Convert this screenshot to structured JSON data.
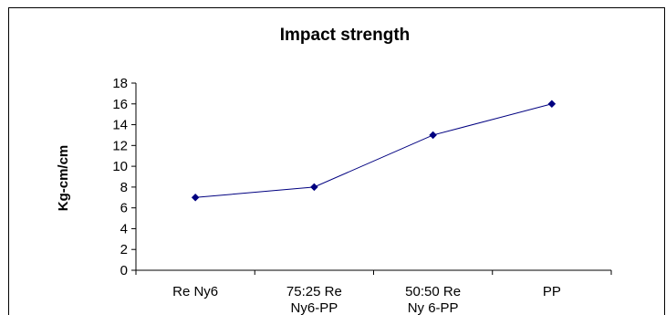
{
  "chart_data": {
    "type": "line",
    "title": "Impact strength",
    "ylabel": "Kg-cm/cm",
    "xlabel": "",
    "categories": [
      [
        "Re Ny6"
      ],
      [
        "75:25 Re",
        "Ny6-PP"
      ],
      [
        "50:50 Re",
        "Ny 6-PP"
      ],
      [
        "PP"
      ]
    ],
    "series": [
      {
        "values": [
          7,
          8,
          13,
          16
        ],
        "color": "#000080"
      }
    ],
    "ylim": [
      0,
      18
    ],
    "yticks": [
      "0",
      "2",
      "4",
      "6",
      "8",
      "10",
      "12",
      "14",
      "16",
      "18"
    ],
    "grid": false,
    "legend": "none",
    "marker": "diamond"
  }
}
